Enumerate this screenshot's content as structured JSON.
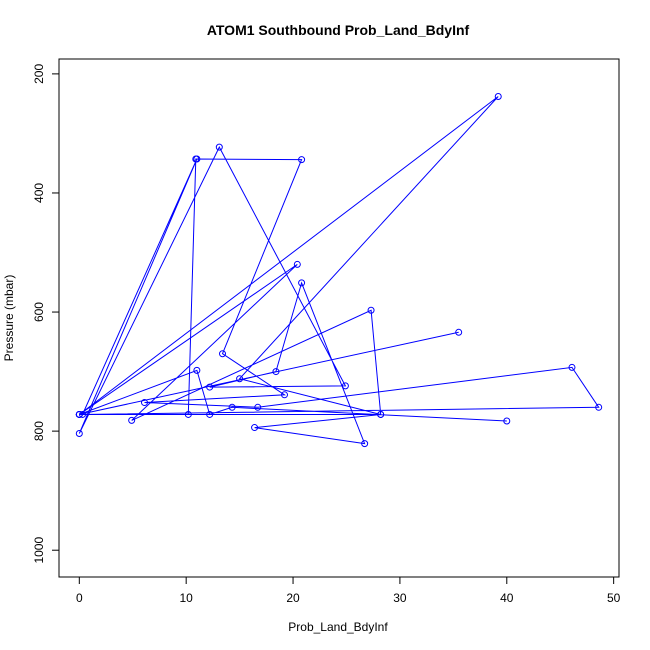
{
  "chart_data": {
    "type": "scatter",
    "title": "ATOM1 Southbound Prob_Land_BdyInf",
    "xlabel": "Prob_Land_BdyInf",
    "ylabel": "Pressure (mbar)",
    "xlim": [
      -1.9,
      50.5
    ],
    "ylim": [
      1045,
      175
    ],
    "y_reversed": true,
    "grid": false,
    "xticks": [
      0,
      10,
      20,
      30,
      40,
      50
    ],
    "yticks": [
      200,
      400,
      600,
      800,
      1000
    ],
    "color": "#0000ff",
    "marker": "open-circle",
    "x": [
      0.3,
      11.0,
      0.0,
      13.1,
      24.9,
      12.2,
      18.4,
      20.8,
      26.7,
      16.4,
      28.2,
      15.0,
      39.2,
      0.0,
      35.5,
      0.0,
      20.4,
      4.9,
      27.3,
      28.2,
      0.0,
      10.2,
      10.9,
      20.8,
      13.4,
      19.2,
      6.1,
      16.7,
      46.1,
      48.6,
      0.0,
      11.0,
      12.2,
      14.3,
      40.0
    ],
    "y": [
      772,
      343,
      804,
      323,
      724,
      726,
      700,
      551,
      821,
      794,
      772,
      712,
      238,
      772,
      634,
      772,
      520,
      782,
      597,
      772,
      772,
      772,
      343,
      344,
      670,
      739,
      752,
      760,
      693,
      760,
      772,
      698,
      772,
      760,
      783
    ]
  }
}
